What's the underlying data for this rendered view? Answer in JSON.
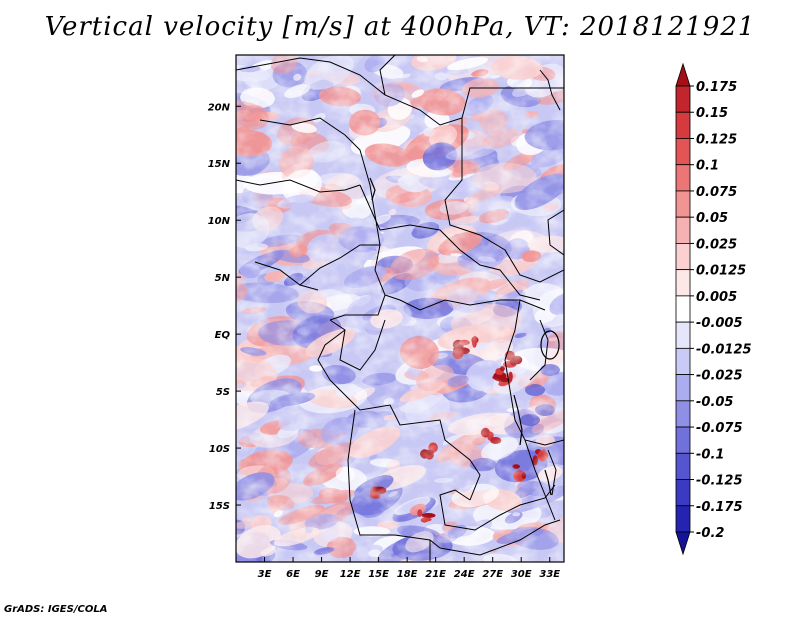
{
  "title": "Vertical velocity [m/s] at 400hPa, VT: 2018121921",
  "footer": "GrADS: IGES/COLA",
  "map": {
    "lon_range": [
      0,
      34.5
    ],
    "lat_range": [
      -20,
      24.5
    ],
    "x_ticks": [
      {
        "value": 3,
        "label": "3E"
      },
      {
        "value": 6,
        "label": "6E"
      },
      {
        "value": 9,
        "label": "9E"
      },
      {
        "value": 12,
        "label": "12E"
      },
      {
        "value": 15,
        "label": "15E"
      },
      {
        "value": 18,
        "label": "18E"
      },
      {
        "value": 21,
        "label": "21E"
      },
      {
        "value": 24,
        "label": "24E"
      },
      {
        "value": 27,
        "label": "27E"
      },
      {
        "value": 30,
        "label": "30E"
      },
      {
        "value": 33,
        "label": "33E"
      }
    ],
    "y_ticks": [
      {
        "value": 20,
        "label": "20N"
      },
      {
        "value": 15,
        "label": "15N"
      },
      {
        "value": 10,
        "label": "10N"
      },
      {
        "value": 5,
        "label": "5N"
      },
      {
        "value": 0,
        "label": "EQ"
      },
      {
        "value": -5,
        "label": "5S"
      },
      {
        "value": -10,
        "label": "10S"
      },
      {
        "value": -15,
        "label": "15S"
      }
    ],
    "background_color": "#c8c8f4"
  },
  "colorbar": {
    "levels": [
      "0.175",
      "0.15",
      "0.125",
      "0.1",
      "0.075",
      "0.05",
      "0.025",
      "0.0125",
      "0.005",
      "-0.005",
      "-0.0125",
      "-0.025",
      "-0.05",
      "-0.075",
      "-0.1",
      "-0.125",
      "-0.175",
      "-0.2"
    ],
    "colors": [
      "#a50f15",
      "#c0262b",
      "#d63a3e",
      "#e35555",
      "#ec7575",
      "#f19494",
      "#f6b2b2",
      "#fad0d0",
      "#fde8e8",
      "#ffffff",
      "#e6e6fb",
      "#cacaf6",
      "#acacf0",
      "#8f8fe6",
      "#7171dc",
      "#5555d0",
      "#3a3ac2",
      "#2424b0",
      "#14149a"
    ]
  }
}
